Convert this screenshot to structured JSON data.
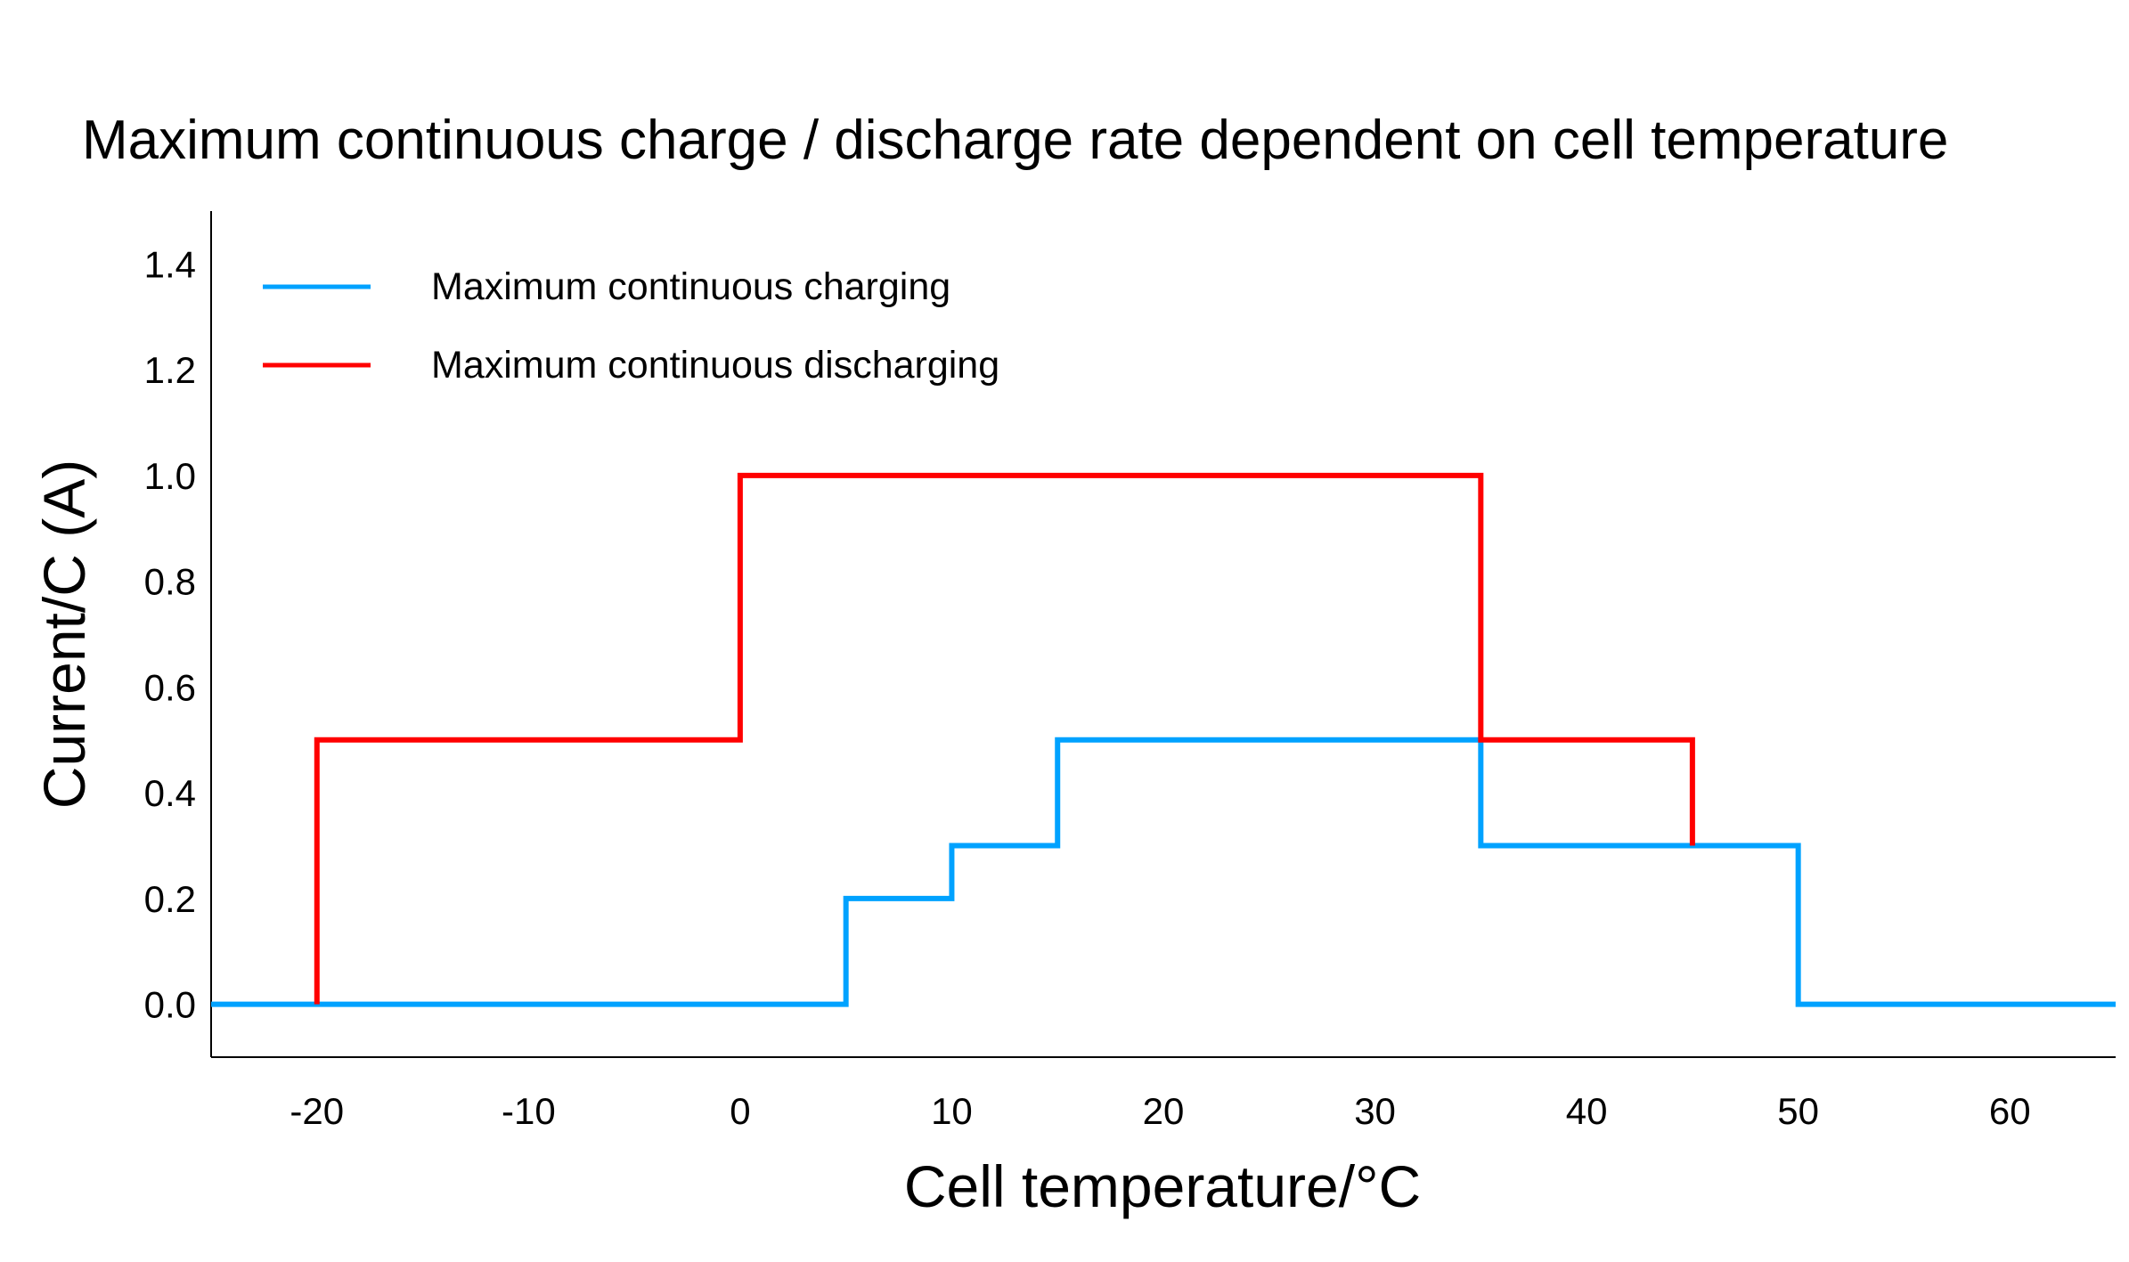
{
  "chart_data": {
    "type": "line",
    "step": true,
    "title": "Maximum continuous charge / discharge rate dependent on cell temperature",
    "xlabel": "Cell temperature/°C",
    "ylabel": "Current/C (A)",
    "xlim": [
      -25,
      65
    ],
    "ylim": [
      -0.1,
      1.5
    ],
    "xticks": [
      -20,
      -10,
      0,
      10,
      20,
      30,
      40,
      50,
      60
    ],
    "xtick_labels": [
      "-20",
      "-10",
      "0",
      "10",
      "20",
      "30",
      "40",
      "50",
      "60"
    ],
    "yticks": [
      0.0,
      0.2,
      0.4,
      0.6,
      0.8,
      1.0,
      1.2,
      1.4
    ],
    "ytick_labels": [
      "0.0",
      "0.2",
      "0.4",
      "0.6",
      "0.8",
      "1.0",
      "1.2",
      "1.4"
    ],
    "grid": false,
    "legend_position": "top-left",
    "series": [
      {
        "name": "Maximum continuous charging",
        "color": "#00a2ff",
        "points": [
          [
            -25,
            0
          ],
          [
            5,
            0
          ],
          [
            5,
            0.2
          ],
          [
            10,
            0.2
          ],
          [
            10,
            0.3
          ],
          [
            15,
            0.3
          ],
          [
            15,
            0.5
          ],
          [
            35,
            0.5
          ],
          [
            35,
            0.3
          ],
          [
            50,
            0.3
          ],
          [
            50,
            0
          ],
          [
            65,
            0
          ]
        ]
      },
      {
        "name": "Maximum continuous discharging",
        "color": "#ff0000",
        "points": [
          [
            -20,
            0
          ],
          [
            -20,
            0.5
          ],
          [
            0,
            0.5
          ],
          [
            0,
            1.0
          ],
          [
            35,
            1.0
          ],
          [
            35,
            0.5
          ],
          [
            45,
            0.5
          ],
          [
            45,
            0.3
          ]
        ]
      }
    ]
  }
}
